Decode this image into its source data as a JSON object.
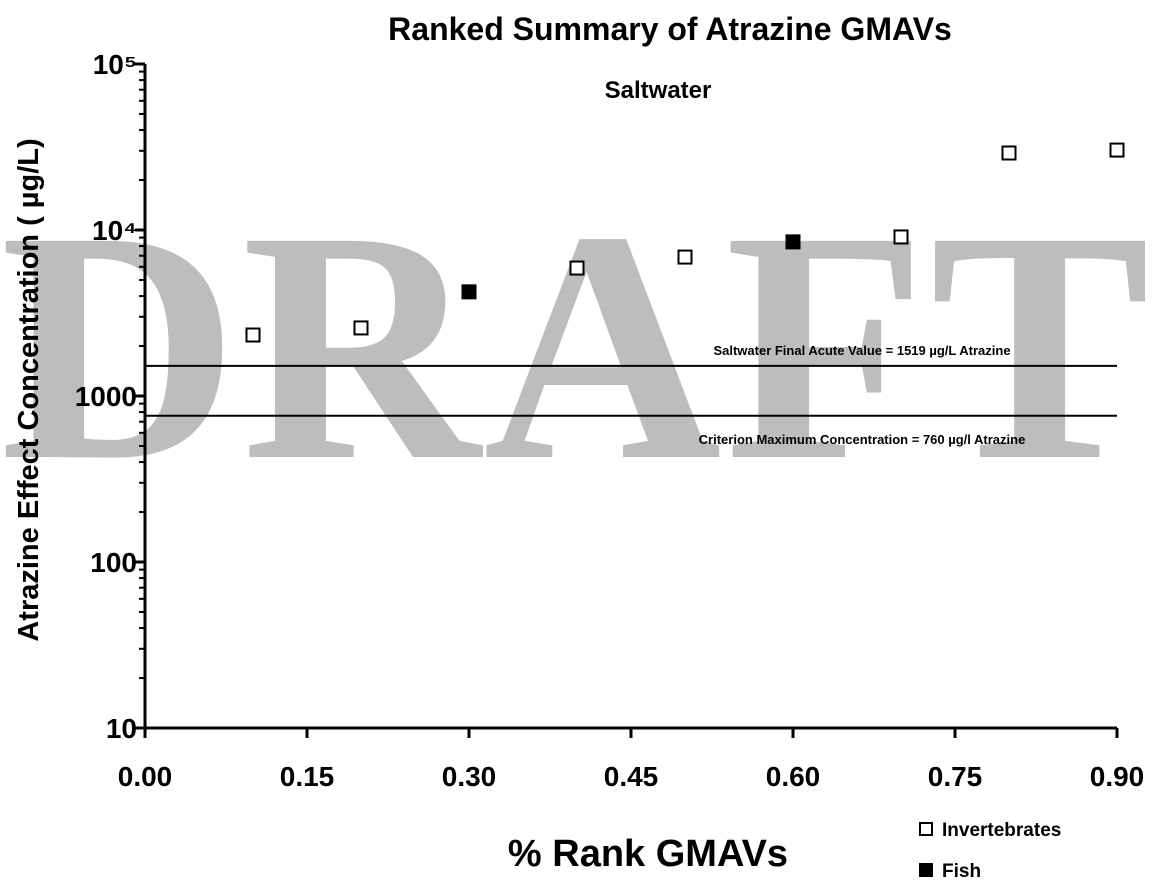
{
  "chart_data": {
    "type": "scatter",
    "title": "Ranked Summary of Atrazine GMAVs",
    "subtitle": "Saltwater",
    "xlabel": "% Rank GMAVs",
    "ylabel": "Atrazine Effect Concentration ( µg/L)",
    "watermark": "DRAFT",
    "log_y": true,
    "xlim": [
      0,
      0.9
    ],
    "ylim": [
      10,
      100000
    ],
    "xticks": [
      {
        "value": 0,
        "label": "0.00"
      },
      {
        "value": 0.15,
        "label": "0.15"
      },
      {
        "value": 0.3,
        "label": "0.30"
      },
      {
        "value": 0.45,
        "label": "0.45"
      },
      {
        "value": 0.6,
        "label": "0.60"
      },
      {
        "value": 0.75,
        "label": "0.75"
      },
      {
        "value": 0.9,
        "label": "0.90"
      }
    ],
    "yticks": [
      10,
      100,
      1000,
      {
        "value": 10000,
        "label": "10⁴"
      },
      {
        "value": 100000,
        "label": "10⁵"
      }
    ],
    "yticks_minor": [
      20,
      30,
      40,
      50,
      60,
      70,
      80,
      90,
      200,
      300,
      400,
      500,
      600,
      700,
      800,
      900,
      2000,
      3000,
      4000,
      5000,
      6000,
      7000,
      8000,
      9000,
      20000,
      30000,
      40000,
      50000,
      60000,
      70000,
      80000,
      90000
    ],
    "hlines": [
      {
        "value": 1519,
        "label": "Saltwater Final Acute Value = 1519 µg/L Atrazine"
      },
      {
        "value": 760,
        "label": "Criterion Maximum Concentration = 760 µg/l Atrazine"
      }
    ],
    "legend": "bottom-right",
    "series": [
      {
        "name": "Invertebrates",
        "color": "#ffffff",
        "x": [
          0.1,
          0.2,
          0.4,
          0.5,
          0.7,
          0.8,
          0.9
        ],
        "values": [
          2330,
          2570,
          5900,
          6870,
          9080,
          29100,
          30300
        ]
      },
      {
        "name": "Fish",
        "color": "#000000",
        "x": [
          0.3,
          0.6
        ],
        "values": [
          4240,
          8480
        ]
      }
    ]
  }
}
